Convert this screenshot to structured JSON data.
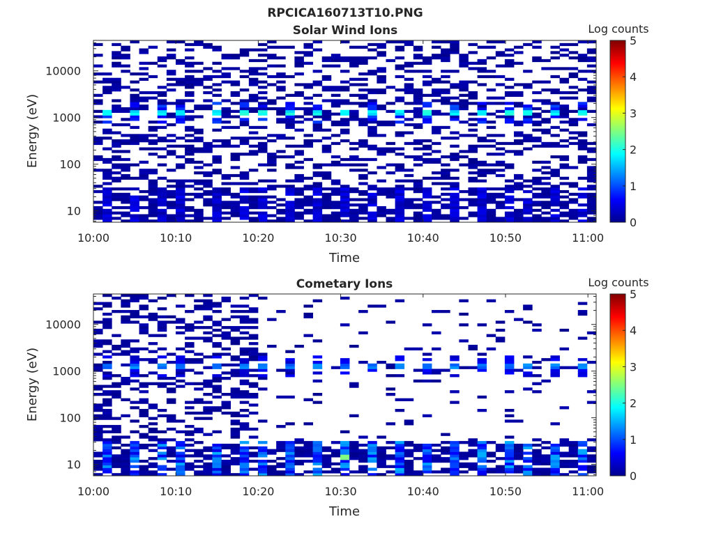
{
  "figure": {
    "title": "RPCICA160713T10.PNG"
  },
  "colors": {
    "colormap": "jet",
    "background": "#ffffff",
    "axis": "#262626"
  },
  "chart_data": [
    {
      "type": "heatmap",
      "title": "Solar Wind Ions",
      "xlabel": "Time",
      "ylabel": "Energy (eV)",
      "xticks": [
        "10:00",
        "10:10",
        "10:20",
        "10:30",
        "10:40",
        "10:50",
        "11:00"
      ],
      "xlim": [
        "10:00",
        "11:01"
      ],
      "yscale": "log",
      "yticks": [
        "10",
        "100",
        "1000",
        "10000"
      ],
      "ylim": [
        5.7,
        45000
      ],
      "colorbar": {
        "label": "Log counts",
        "min": 0,
        "max": 5,
        "ticks": [
          "0",
          "1",
          "2",
          "3",
          "4",
          "5"
        ]
      },
      "time_bins": 55,
      "energy_bins": 68,
      "features": {
        "peak_energy_eV": 1280,
        "peak_times": [
          "10:02",
          "10:05",
          "10:08",
          "10:11",
          "10:15",
          "10:18",
          "10:21",
          "10:24",
          "10:27",
          "10:31",
          "10:34",
          "10:37",
          "10:40",
          "10:44",
          "10:47",
          "10:50",
          "10:53",
          "10:56",
          "10:59"
        ],
        "peak_level": 1.9,
        "low_energy_band_eV": [
          6,
          30
        ],
        "low_energy_level": 0.4,
        "background_occupancy": 0.36,
        "background_level": 0.15
      }
    },
    {
      "type": "heatmap",
      "title": "Cometary Ions",
      "xlabel": "Time",
      "ylabel": "Energy (eV)",
      "xticks": [
        "10:00",
        "10:10",
        "10:20",
        "10:30",
        "10:40",
        "10:50",
        "11:00"
      ],
      "xlim": [
        "10:00",
        "11:01"
      ],
      "yscale": "log",
      "yticks": [
        "10",
        "100",
        "1000",
        "10000"
      ],
      "ylim": [
        5.7,
        45000
      ],
      "colorbar": {
        "label": "Log counts",
        "min": 0,
        "max": 5,
        "ticks": [
          "0",
          "1",
          "2",
          "3",
          "4",
          "5"
        ]
      },
      "time_bins": 55,
      "energy_bins": 68,
      "features": {
        "dense_until": "10:20",
        "peak_energy_eV": 1280,
        "peak_times": [
          "10:02",
          "10:05",
          "10:08",
          "10:11",
          "10:15",
          "10:18",
          "10:21",
          "10:24",
          "10:27",
          "10:31",
          "10:34",
          "10:37",
          "10:40",
          "10:44",
          "10:47",
          "10:50",
          "10:53",
          "10:56",
          "10:59"
        ],
        "peak_level": 1.2,
        "low_energy_band_eV": [
          6,
          30
        ],
        "low_energy_level": 1.0,
        "max_low_energy_event": {
          "time": "10:31",
          "energy_eV": 14,
          "level": 2.5
        },
        "background_occupancy_dense": 0.36,
        "background_occupancy_sparse": 0.06,
        "background_level": 0.15
      }
    }
  ]
}
